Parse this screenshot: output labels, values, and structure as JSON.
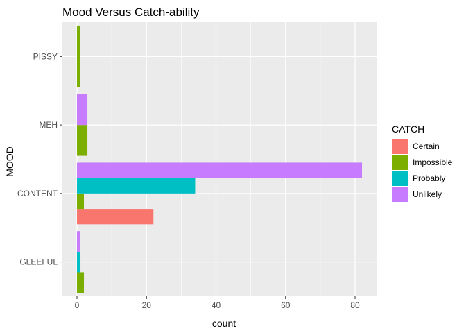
{
  "chart_data": {
    "type": "bar",
    "orientation": "horizontal",
    "position": "dodge",
    "title": "Mood Versus Catch-ability",
    "xlabel": "count",
    "ylabel": "MOOD",
    "categories": [
      "GLEEFUL",
      "CONTENT",
      "MEH",
      "PISSY"
    ],
    "xlim": [
      0,
      85
    ],
    "xticks": [
      0,
      20,
      40,
      60,
      80
    ],
    "grid": true,
    "legend": {
      "title": "CATCH",
      "placement": "right",
      "entries": [
        "Certain",
        "Impossible",
        "Probably",
        "Unlikely"
      ]
    },
    "series": [
      {
        "name": "Certain",
        "color": "#F8766D",
        "values": [
          null,
          22,
          null,
          null
        ]
      },
      {
        "name": "Impossible",
        "color": "#7CAE00",
        "values": [
          2,
          2,
          3,
          1
        ]
      },
      {
        "name": "Probably",
        "color": "#00BFC4",
        "values": [
          1,
          34,
          null,
          null
        ]
      },
      {
        "name": "Unlikely",
        "color": "#C77CFF",
        "values": [
          1,
          82,
          3,
          null
        ]
      }
    ]
  }
}
